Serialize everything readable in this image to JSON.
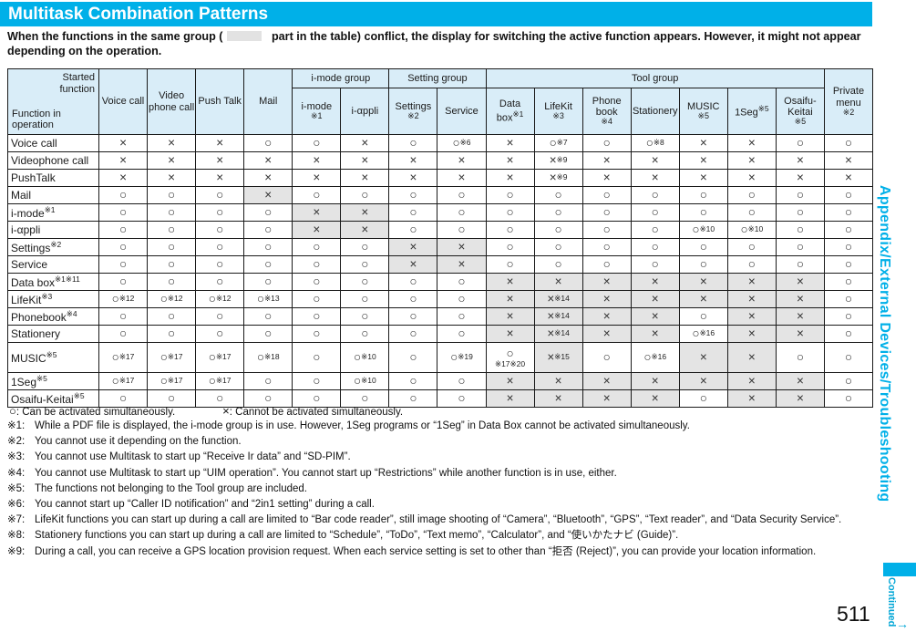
{
  "page": {
    "title": "Multitask Combination Patterns",
    "intro_pre": "When the functions in the same group (",
    "intro_post": " part in the table) conflict, the display for switching the active function appears. However, it might not appear depending on the operation."
  },
  "colors": {
    "accent_cyan": "#00b0e8",
    "header_blue": "#d9edf8",
    "shaded_gray": "#e4e4e4"
  },
  "table": {
    "corner_top": "Started function",
    "corner_bottom": "Function in operation",
    "plain_columns": [
      {
        "label": "Voice call",
        "note": ""
      },
      {
        "label": "Video phone call",
        "note": ""
      },
      {
        "label": "Push Talk",
        "note": ""
      },
      {
        "label": "Mail",
        "note": ""
      }
    ],
    "groups": [
      {
        "label": "i-mode group",
        "columns": [
          {
            "label": "i-mode",
            "note": "※1"
          },
          {
            "label": "i-αppli",
            "note": ""
          }
        ]
      },
      {
        "label": "Setting group",
        "columns": [
          {
            "label": "Settings",
            "note": "※2"
          },
          {
            "label": "Service",
            "note": ""
          }
        ]
      },
      {
        "label": "Tool group",
        "columns": [
          {
            "label": "Data box",
            "note": "※1",
            "inline": true
          },
          {
            "label": "LifeKit",
            "note": "※3"
          },
          {
            "label": "Phone book",
            "note": "※4"
          },
          {
            "label": "Stationery",
            "note": ""
          },
          {
            "label": "MUSIC",
            "note": "※5"
          },
          {
            "label": "1Seg",
            "note": "※5",
            "inline": true
          },
          {
            "label": "Osaifu-Keitai",
            "note": "※5"
          }
        ]
      }
    ],
    "last_column": {
      "label": "Private menu",
      "note": "※2"
    },
    "rows": [
      {
        "label": "Voice call",
        "note": "",
        "cells": [
          "×",
          "×",
          "×",
          "○",
          "○",
          "×",
          "○",
          "○※6",
          "×",
          "○※7",
          "○",
          "○※8",
          "×",
          "×",
          "○",
          "○"
        ]
      },
      {
        "label": "Videophone call",
        "note": "",
        "cells": [
          "×",
          "×",
          "×",
          "×",
          "×",
          "×",
          "×",
          "×",
          "×",
          "×※9",
          "×",
          "×",
          "×",
          "×",
          "×",
          "×"
        ]
      },
      {
        "label": "PushTalk",
        "note": "",
        "cells": [
          "×",
          "×",
          "×",
          "×",
          "×",
          "×",
          "×",
          "×",
          "×",
          "×※9",
          "×",
          "×",
          "×",
          "×",
          "×",
          "×"
        ]
      },
      {
        "label": "Mail",
        "note": "",
        "cells": [
          "○",
          "○",
          "○",
          "#×",
          "○",
          "○",
          "○",
          "○",
          "○",
          "○",
          "○",
          "○",
          "○",
          "○",
          "○",
          "○"
        ]
      },
      {
        "label": "i-mode",
        "note": "※1",
        "cells": [
          "○",
          "○",
          "○",
          "○",
          "#×",
          "#×",
          "○",
          "○",
          "○",
          "○",
          "○",
          "○",
          "○",
          "○",
          "○",
          "○"
        ]
      },
      {
        "label": "i-αppli",
        "note": "",
        "cells": [
          "○",
          "○",
          "○",
          "○",
          "#×",
          "#×",
          "○",
          "○",
          "○",
          "○",
          "○",
          "○",
          "○※10",
          "○※10",
          "○",
          "○"
        ]
      },
      {
        "label": "Settings",
        "note": "※2",
        "cells": [
          "○",
          "○",
          "○",
          "○",
          "○",
          "○",
          "#×",
          "#×",
          "○",
          "○",
          "○",
          "○",
          "○",
          "○",
          "○",
          "○"
        ]
      },
      {
        "label": "Service",
        "note": "",
        "cells": [
          "○",
          "○",
          "○",
          "○",
          "○",
          "○",
          "#×",
          "#×",
          "○",
          "○",
          "○",
          "○",
          "○",
          "○",
          "○",
          "○"
        ]
      },
      {
        "label": "Data box",
        "note": "※1※11",
        "cells": [
          "○",
          "○",
          "○",
          "○",
          "○",
          "○",
          "○",
          "○",
          "#×",
          "#×",
          "#×",
          "#×",
          "#×",
          "#×",
          "#×",
          "○"
        ]
      },
      {
        "label": "LifeKit",
        "note": "※3",
        "cells": [
          "○※12",
          "○※12",
          "○※12",
          "○※13",
          "○",
          "○",
          "○",
          "○",
          "#×",
          "#×※14",
          "#×",
          "#×",
          "#×",
          "#×",
          "#×",
          "○"
        ]
      },
      {
        "label": "Phonebook",
        "note": "※4",
        "cells": [
          "○",
          "○",
          "○",
          "○",
          "○",
          "○",
          "○",
          "○",
          "#×",
          "#×※14",
          "#×",
          "#×",
          "○",
          "#×",
          "#×",
          "○"
        ]
      },
      {
        "label": "Stationery",
        "note": "",
        "cells": [
          "○",
          "○",
          "○",
          "○",
          "○",
          "○",
          "○",
          "○",
          "#×",
          "#×※14",
          "#×",
          "#×",
          "○※16",
          "#×",
          "#×",
          "○"
        ]
      },
      {
        "label": "MUSIC",
        "note": "※5",
        "tall": true,
        "cells": [
          "○※17",
          "○※17",
          "○※17",
          "○※18",
          "○",
          "○※10",
          "○",
          "○※19",
          "○※17※20",
          "#×※15",
          "○",
          "○※16",
          "#×",
          "#×",
          "○",
          "○"
        ]
      },
      {
        "label": "1Seg",
        "note": "※5",
        "cells": [
          "○※17",
          "○※17",
          "○※17",
          "○",
          "○",
          "○※10",
          "○",
          "○",
          "#×",
          "#×",
          "#×",
          "#×",
          "#×",
          "#×",
          "#×",
          "○"
        ]
      },
      {
        "label": "Osaifu-Keitai",
        "note": "※5",
        "cells": [
          "○",
          "○",
          "○",
          "○",
          "○",
          "○",
          "○",
          "○",
          "#×",
          "#×",
          "#×",
          "#×",
          "○",
          "#×",
          "#×",
          "○"
        ]
      }
    ]
  },
  "legend": [
    {
      "symbol": "○",
      "text": ": Can be activated simultaneously."
    },
    {
      "symbol": "×",
      "text": ": Cannot be activated simultaneously."
    }
  ],
  "footnotes": [
    {
      "ref": "※1:",
      "text": "While a PDF file is displayed, the i-mode group is in use. However, 1Seg programs or “1Seg” in Data Box cannot be activated simultaneously."
    },
    {
      "ref": "※2:",
      "text": "You cannot use it depending on the function."
    },
    {
      "ref": "※3:",
      "text": "You cannot use Multitask to start up “Receive Ir data” and “SD-PIM”."
    },
    {
      "ref": "※4:",
      "text": "You cannot use Multitask to start up “UIM operation”. You cannot start up “Restrictions” while another function is in use, either."
    },
    {
      "ref": "※5:",
      "text": "The functions not belonging to the Tool group are included."
    },
    {
      "ref": "※6:",
      "text": "You cannot start up “Caller ID notification” and “2in1 setting” during a call."
    },
    {
      "ref": "※7:",
      "text": "LifeKit functions you can start up during a call are limited to “Bar code reader”, still image shooting of “Camera”, “Bluetooth”, “GPS”, “Text reader”, and “Data Security Service”."
    },
    {
      "ref": "※8:",
      "text": "Stationery functions you can start up during a call are limited to “Schedule”, “ToDo”, “Text memo”, “Calculator”, and “使いかたナビ (Guide)”."
    },
    {
      "ref": "※9:",
      "text": "During a call, you can receive a GPS location provision request. When each service setting is set to other than “拒否 (Reject)”, you can provide your location information."
    }
  ],
  "sidebar": {
    "section_label": "Appendix/External Devices/Troubleshooting",
    "continued_label": "Continued",
    "continued_arrow": "→",
    "page_number": "511"
  }
}
